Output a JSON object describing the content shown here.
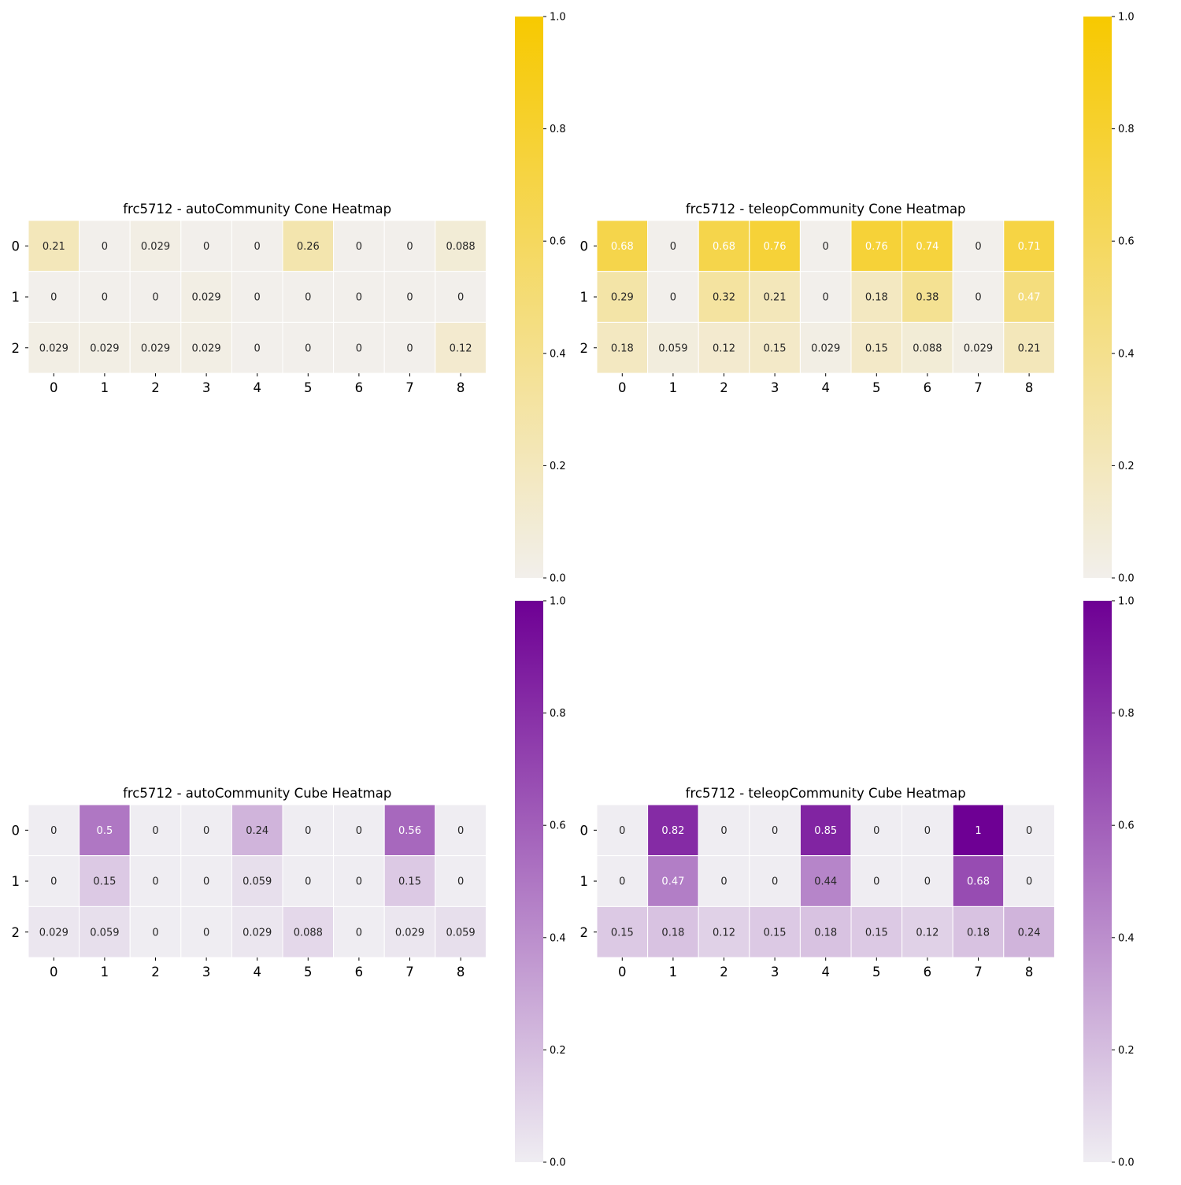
{
  "chart_data": [
    {
      "type": "heatmap",
      "title": "frc5712 - autoCommunity Cone Heatmap",
      "x_ticks": [
        "0",
        "1",
        "2",
        "3",
        "4",
        "5",
        "6",
        "7",
        "8"
      ],
      "y_ticks": [
        "0",
        "1",
        "2"
      ],
      "values": [
        [
          0.21,
          0,
          0.029,
          0,
          0,
          0.26,
          0,
          0,
          0.088
        ],
        [
          0,
          0,
          0,
          0.029,
          0,
          0,
          0,
          0,
          0
        ],
        [
          0.029,
          0.029,
          0.029,
          0.029,
          0,
          0,
          0,
          0,
          0.12
        ]
      ],
      "labels": [
        [
          "0.21",
          "0",
          "0.029",
          "0",
          "0",
          "0.26",
          "0",
          "0",
          "0.088"
        ],
        [
          "0",
          "0",
          "0",
          "0.029",
          "0",
          "0",
          "0",
          "0",
          "0"
        ],
        [
          "0.029",
          "0.029",
          "0.029",
          "0.029",
          "0",
          "0",
          "0",
          "0",
          "0.12"
        ]
      ],
      "vmin": 0,
      "vmax": 1,
      "colorscale": [
        "#f2efeb",
        "#f7c900"
      ],
      "colorbar_ticks": [
        "0.0",
        "0.2",
        "0.4",
        "0.6",
        "0.8",
        "1.0"
      ]
    },
    {
      "type": "heatmap",
      "title": "frc5712 - teleopCommunity Cone Heatmap",
      "x_ticks": [
        "0",
        "1",
        "2",
        "3",
        "4",
        "5",
        "6",
        "7",
        "8"
      ],
      "y_ticks": [
        "0",
        "1",
        "2"
      ],
      "values": [
        [
          0.68,
          0,
          0.68,
          0.76,
          0,
          0.76,
          0.74,
          0,
          0.71
        ],
        [
          0.29,
          0,
          0.32,
          0.21,
          0,
          0.18,
          0.38,
          0,
          0.47
        ],
        [
          0.18,
          0.059,
          0.12,
          0.15,
          0.029,
          0.15,
          0.088,
          0.029,
          0.21
        ]
      ],
      "labels": [
        [
          "0.68",
          "0",
          "0.68",
          "0.76",
          "0",
          "0.76",
          "0.74",
          "0",
          "0.71"
        ],
        [
          "0.29",
          "0",
          "0.32",
          "0.21",
          "0",
          "0.18",
          "0.38",
          "0",
          "0.47"
        ],
        [
          "0.18",
          "0.059",
          "0.12",
          "0.15",
          "0.029",
          "0.15",
          "0.088",
          "0.029",
          "0.21"
        ]
      ],
      "vmin": 0,
      "vmax": 1,
      "colorscale": [
        "#f2efeb",
        "#f7c900"
      ],
      "colorbar_ticks": [
        "0.0",
        "0.2",
        "0.4",
        "0.6",
        "0.8",
        "1.0"
      ]
    },
    {
      "type": "heatmap",
      "title": "frc5712 - autoCommunity Cube Heatmap",
      "x_ticks": [
        "0",
        "1",
        "2",
        "3",
        "4",
        "5",
        "6",
        "7",
        "8"
      ],
      "y_ticks": [
        "0",
        "1",
        "2"
      ],
      "values": [
        [
          0,
          0.5,
          0,
          0,
          0.24,
          0,
          0,
          0.56,
          0
        ],
        [
          0,
          0.15,
          0,
          0,
          0.059,
          0,
          0,
          0.15,
          0
        ],
        [
          0.029,
          0.059,
          0,
          0,
          0.029,
          0.088,
          0,
          0.029,
          0.059
        ]
      ],
      "labels": [
        [
          "0",
          "0.5",
          "0",
          "0",
          "0.24",
          "0",
          "0",
          "0.56",
          "0"
        ],
        [
          "0",
          "0.15",
          "0",
          "0",
          "0.059",
          "0",
          "0",
          "0.15",
          "0"
        ],
        [
          "0.029",
          "0.059",
          "0",
          "0",
          "0.029",
          "0.088",
          "0",
          "0.029",
          "0.059"
        ]
      ],
      "vmin": 0,
      "vmax": 1,
      "colorscale": [
        "#efedf2",
        "#6e0094"
      ],
      "colorbar_ticks": [
        "0.0",
        "0.2",
        "0.4",
        "0.6",
        "0.8",
        "1.0"
      ]
    },
    {
      "type": "heatmap",
      "title": "frc5712 - teleopCommunity Cube Heatmap",
      "x_ticks": [
        "0",
        "1",
        "2",
        "3",
        "4",
        "5",
        "6",
        "7",
        "8"
      ],
      "y_ticks": [
        "0",
        "1",
        "2"
      ],
      "values": [
        [
          0,
          0.82,
          0,
          0,
          0.85,
          0,
          0,
          1,
          0
        ],
        [
          0,
          0.47,
          0,
          0,
          0.44,
          0,
          0,
          0.68,
          0
        ],
        [
          0.15,
          0.18,
          0.12,
          0.15,
          0.18,
          0.15,
          0.12,
          0.18,
          0.24
        ]
      ],
      "labels": [
        [
          "0",
          "0.82",
          "0",
          "0",
          "0.85",
          "0",
          "0",
          "1",
          "0"
        ],
        [
          "0",
          "0.47",
          "0",
          "0",
          "0.44",
          "0",
          "0",
          "0.68",
          "0"
        ],
        [
          "0.15",
          "0.18",
          "0.12",
          "0.15",
          "0.18",
          "0.15",
          "0.12",
          "0.18",
          "0.24"
        ]
      ],
      "vmin": 0,
      "vmax": 1,
      "colorscale": [
        "#efedf2",
        "#6e0094"
      ],
      "colorbar_ticks": [
        "0.0",
        "0.2",
        "0.4",
        "0.6",
        "0.8",
        "1.0"
      ]
    }
  ]
}
